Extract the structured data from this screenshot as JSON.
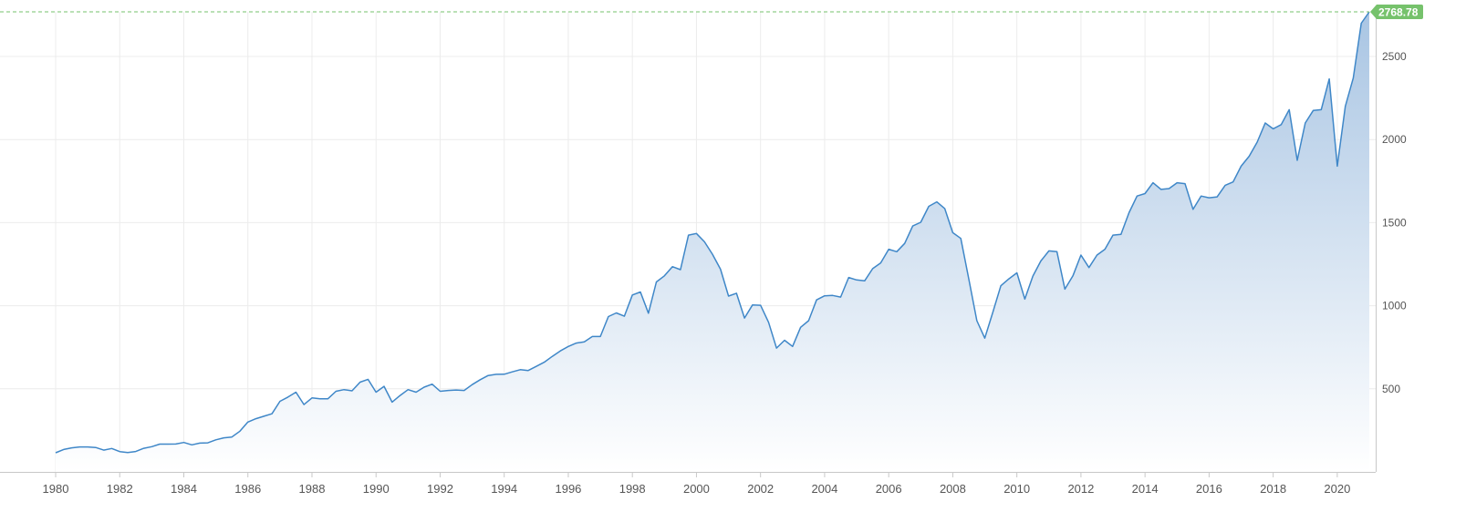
{
  "chart_data": {
    "type": "area",
    "title": "",
    "xlabel": "",
    "ylabel": "",
    "xlim": [
      1980,
      2021
    ],
    "ylim": [
      0,
      2768.78
    ],
    "x_ticks": [
      1980,
      1982,
      1984,
      1986,
      1988,
      1990,
      1992,
      1994,
      1996,
      1998,
      2000,
      2002,
      2004,
      2006,
      2008,
      2010,
      2012,
      2014,
      2016,
      2018,
      2020
    ],
    "x_tick_labels": [
      "1980",
      "1982",
      "1984",
      "1986",
      "1988",
      "1990",
      "1992",
      "1994",
      "1996",
      "1998",
      "2000",
      "2002",
      "2004",
      "2006",
      "2008",
      "2010",
      "2012",
      "2014",
      "2016",
      "2018",
      "2020"
    ],
    "y_ticks": [
      500,
      1000,
      1500,
      2000,
      2500
    ],
    "y_tick_labels": [
      "500",
      "1000",
      "1500",
      "2000",
      "2500"
    ],
    "grid": true,
    "last_value_label": "2768.78",
    "colors": {
      "line": "#3f87c8",
      "fill_top": "#a9c5e3",
      "fill_bottom": "#ffffff",
      "marker": "#76c26c",
      "grid": "#ececec",
      "axis": "#c8c8c8",
      "tick_text": "#555555"
    },
    "x": [
      1980.0,
      1980.25,
      1980.5,
      1980.75,
      1981.0,
      1981.25,
      1981.5,
      1981.75,
      1982.0,
      1982.25,
      1982.5,
      1982.75,
      1983.0,
      1983.25,
      1983.5,
      1983.75,
      1984.0,
      1984.25,
      1984.5,
      1984.75,
      1985.0,
      1985.25,
      1985.5,
      1985.75,
      1986.0,
      1986.25,
      1986.5,
      1986.75,
      1987.0,
      1987.25,
      1987.5,
      1987.75,
      1988.0,
      1988.25,
      1988.5,
      1988.75,
      1989.0,
      1989.25,
      1989.5,
      1989.75,
      1990.0,
      1990.25,
      1990.5,
      1990.75,
      1991.0,
      1991.25,
      1991.5,
      1991.75,
      1992.0,
      1992.25,
      1992.5,
      1992.75,
      1993.0,
      1993.25,
      1993.5,
      1993.75,
      1994.0,
      1994.25,
      1994.5,
      1994.75,
      1995.0,
      1995.25,
      1995.5,
      1995.75,
      1996.0,
      1996.25,
      1996.5,
      1996.75,
      1997.0,
      1997.25,
      1997.5,
      1997.75,
      1998.0,
      1998.25,
      1998.5,
      1998.75,
      1999.0,
      1999.25,
      1999.5,
      1999.75,
      2000.0,
      2000.25,
      2000.5,
      2000.75,
      2001.0,
      2001.25,
      2001.5,
      2001.75,
      2002.0,
      2002.25,
      2002.5,
      2002.75,
      2003.0,
      2003.25,
      2003.5,
      2003.75,
      2004.0,
      2004.25,
      2004.5,
      2004.75,
      2005.0,
      2005.25,
      2005.5,
      2005.75,
      2006.0,
      2006.25,
      2006.5,
      2006.75,
      2007.0,
      2007.25,
      2007.5,
      2007.75,
      2008.0,
      2008.25,
      2008.5,
      2008.75,
      2009.0,
      2009.25,
      2009.5,
      2009.75,
      2010.0,
      2010.25,
      2010.5,
      2010.75,
      2011.0,
      2011.25,
      2011.5,
      2011.75,
      2012.0,
      2012.25,
      2012.5,
      2012.75,
      2013.0,
      2013.25,
      2013.5,
      2013.75,
      2014.0,
      2014.25,
      2014.5,
      2014.75,
      2015.0,
      2015.25,
      2015.5,
      2015.75,
      2016.0,
      2016.25,
      2016.5,
      2016.75,
      2017.0,
      2017.25,
      2017.5,
      2017.75,
      2018.0,
      2018.25,
      2018.5,
      2018.75,
      2019.0,
      2019.25,
      2019.5,
      2019.75,
      2020.0,
      2020.25,
      2020.5,
      2020.75,
      2021.0
    ],
    "series": [
      {
        "values": [
          115,
          135,
          145,
          150,
          150,
          147,
          131,
          141,
          122,
          117,
          123,
          142,
          152,
          167,
          167,
          168,
          177,
          163,
          173,
          175,
          193,
          205,
          210,
          245,
          300,
          320,
          335,
          350,
          425,
          450,
          480,
          405,
          445,
          440,
          440,
          485,
          495,
          488,
          540,
          557,
          480,
          515,
          420,
          460,
          495,
          480,
          510,
          528,
          485,
          490,
          493,
          490,
          525,
          555,
          580,
          587,
          588,
          602,
          615,
          610,
          635,
          660,
          695,
          728,
          755,
          775,
          783,
          815,
          815,
          935,
          957,
          937,
          1065,
          1083,
          955,
          1143,
          1180,
          1235,
          1217,
          1425,
          1435,
          1385,
          1310,
          1220,
          1058,
          1075,
          926,
          1005,
          1003,
          900,
          745,
          792,
          755,
          870,
          910,
          1035,
          1060,
          1062,
          1052,
          1170,
          1155,
          1150,
          1223,
          1258,
          1340,
          1325,
          1375,
          1480,
          1502,
          1598,
          1625,
          1585,
          1440,
          1405,
          1160,
          910,
          805,
          960,
          1120,
          1162,
          1198,
          1040,
          1178,
          1270,
          1330,
          1325,
          1100,
          1180,
          1305,
          1230,
          1305,
          1340,
          1425,
          1430,
          1560,
          1660,
          1675,
          1740,
          1700,
          1705,
          1740,
          1735,
          1580,
          1660,
          1650,
          1655,
          1725,
          1745,
          1840,
          1900,
          1985,
          2100,
          2065,
          2090,
          2180,
          1875,
          2100,
          2175,
          2180,
          2365,
          1840,
          2200,
          2370,
          2700,
          2768.78
        ]
      }
    ]
  }
}
